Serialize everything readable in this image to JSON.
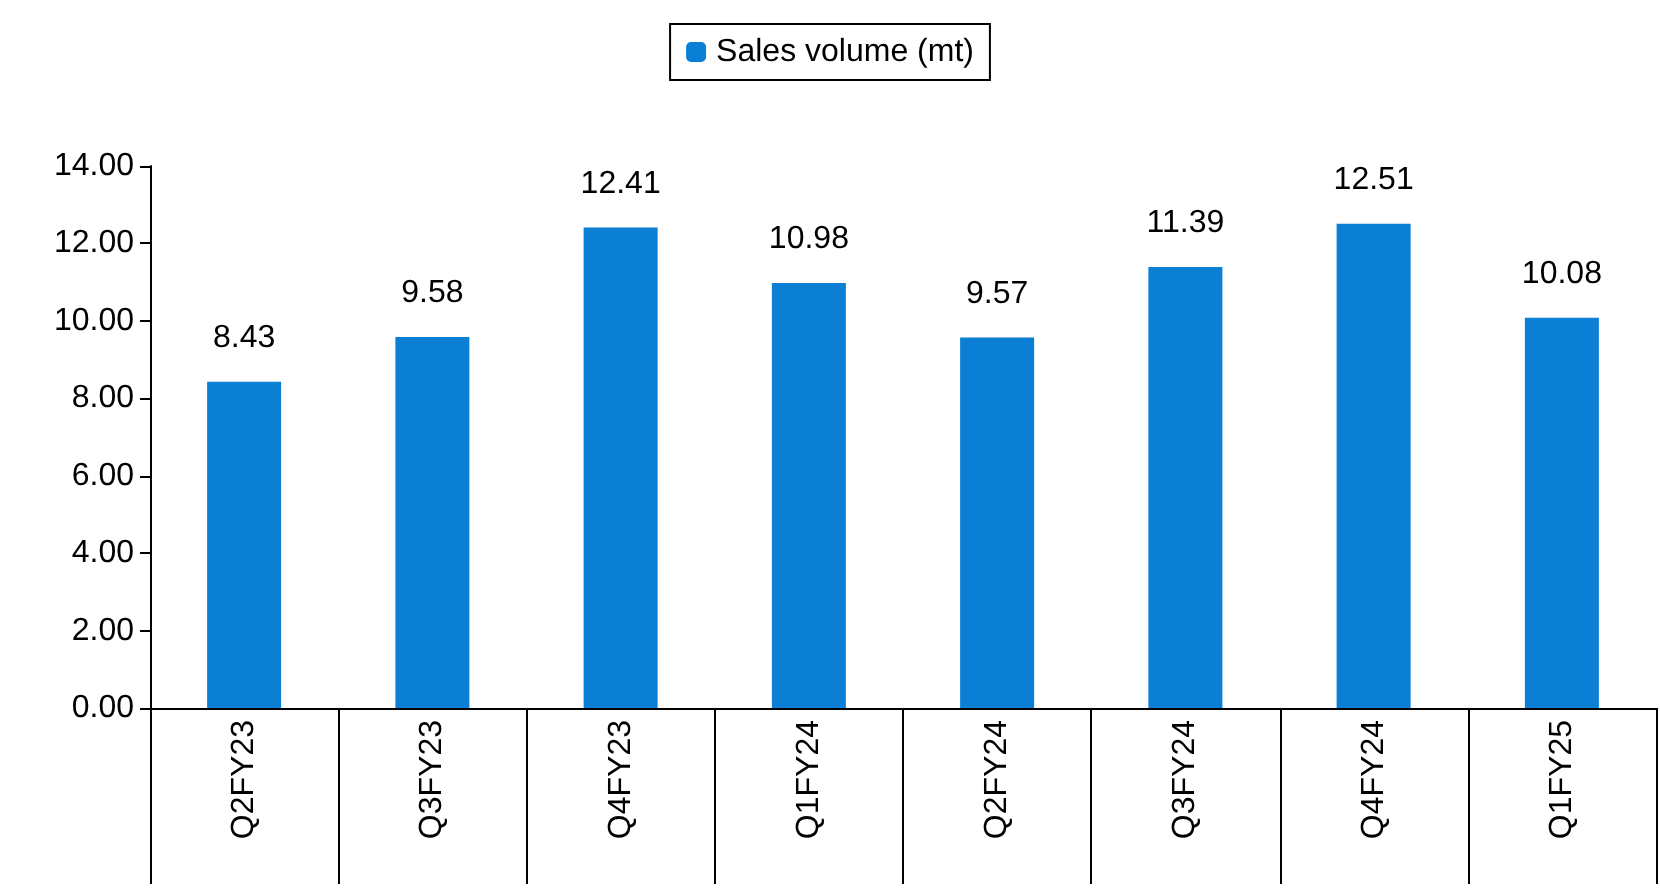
{
  "chart_data": {
    "type": "bar",
    "categories": [
      "Q2FY23",
      "Q3FY23",
      "Q4FY23",
      "Q1FY24",
      "Q2FY24",
      "Q3FY24",
      "Q4FY24",
      "Q1FY25"
    ],
    "series": [
      {
        "name": "Sales volume (mt)",
        "color": "#0a7fd4",
        "values": [
          8.43,
          9.58,
          12.41,
          10.98,
          9.57,
          11.39,
          12.51,
          10.08
        ]
      }
    ],
    "ylim": [
      0,
      14
    ],
    "yticks": [
      {
        "value": 0,
        "label": "0.00"
      },
      {
        "value": 2,
        "label": "2.00"
      },
      {
        "value": 4,
        "label": "4.00"
      },
      {
        "value": 6,
        "label": "6.00"
      },
      {
        "value": 8,
        "label": "8.00"
      },
      {
        "value": 10,
        "label": "10.00"
      },
      {
        "value": 12,
        "label": "12.00"
      },
      {
        "value": 14,
        "label": "14.00"
      }
    ],
    "data_labels": true,
    "grid": false,
    "legend": "top"
  }
}
